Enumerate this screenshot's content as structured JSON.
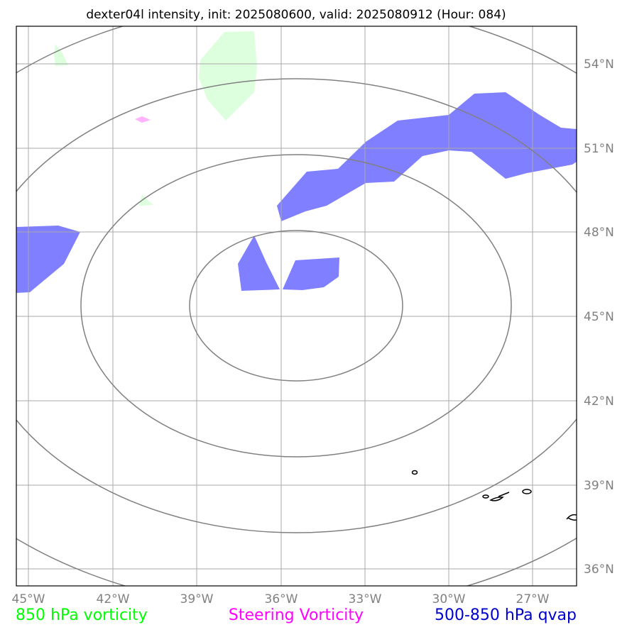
{
  "title": "dexter04l intensity, init: 2025080600, valid: 2025080912 (Hour: 084)",
  "x_ticks": [
    "45°W",
    "42°W",
    "39°W",
    "36°W",
    "33°W",
    "30°W",
    "27°W"
  ],
  "y_ticks": [
    "54°N",
    "51°N",
    "48°N",
    "45°N",
    "42°N",
    "39°N",
    "36°N"
  ],
  "legend": {
    "vorticity_850": "850 hPa vorticity",
    "steering": "Steering Vorticity",
    "qvap": "500-850 hPa qvap"
  },
  "colors": {
    "vorticity_850_text": "#00ff00",
    "steering_text": "#ff00ff",
    "qvap_text": "#0000cc",
    "qvap_fill": "#7f7fff",
    "vorticity_850_fill": "#ddffdd",
    "steering_fill": "#ffb3ff",
    "grid": "#aaaaaa",
    "range_rings": "#808080"
  }
}
